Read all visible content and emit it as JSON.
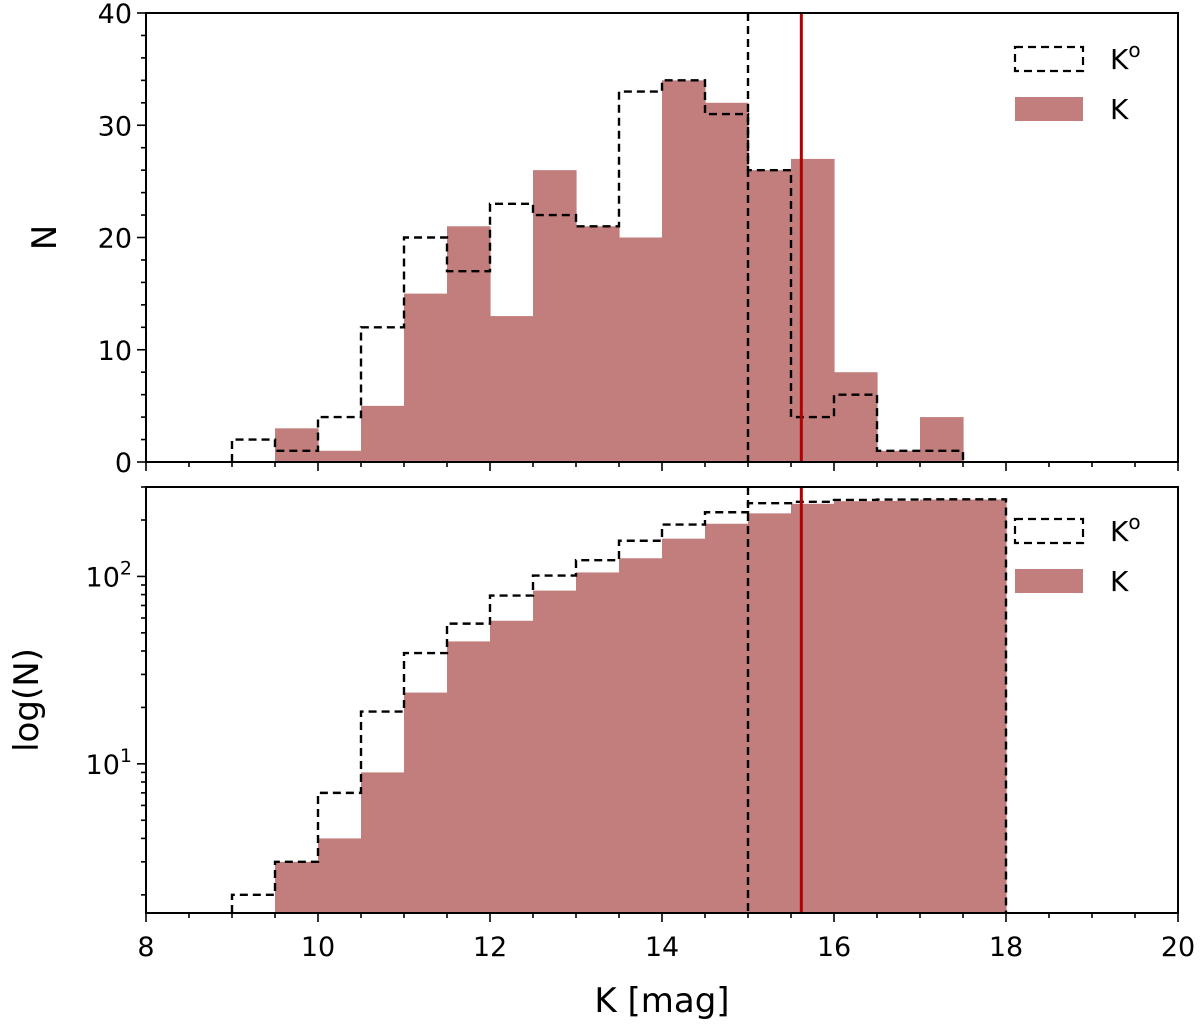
{
  "chart_data": [
    {
      "type": "histogram",
      "panel": "top",
      "xlabel": "",
      "ylabel": "N",
      "xlim": [
        8,
        20
      ],
      "ylim": [
        0,
        40
      ],
      "yscale": "linear",
      "xticks": [
        8,
        10,
        12,
        14,
        16,
        18,
        20
      ],
      "yticks": [
        0,
        10,
        20,
        30,
        40
      ],
      "ytick_labels": [
        "0",
        "10",
        "20",
        "30",
        "40"
      ],
      "bin_edges": [
        9.0,
        9.5,
        10.0,
        10.5,
        11.0,
        11.5,
        12.0,
        12.5,
        13.0,
        13.5,
        14.0,
        14.5,
        15.0,
        15.5,
        16.0,
        16.5,
        17.0,
        17.5
      ],
      "series": [
        {
          "name": "K",
          "legend": "K",
          "style": "filled",
          "color": "#c27e7c",
          "values": [
            0,
            3,
            1,
            5,
            15,
            21,
            13,
            26,
            21,
            20,
            34,
            32,
            26,
            27,
            8,
            1,
            4
          ]
        },
        {
          "name": "K^o",
          "legend": "K",
          "legend_sup": "o",
          "style": "dashed-step",
          "color": "#000000",
          "values": [
            2,
            1,
            4,
            12,
            20,
            17,
            23,
            22,
            21,
            33,
            34,
            31,
            26,
            4,
            6,
            1,
            1
          ]
        }
      ],
      "vlines": [
        {
          "x": 15.0,
          "style": "dashed",
          "color": "#000000"
        },
        {
          "x": 15.62,
          "style": "solid",
          "color": "#b30000"
        }
      ],
      "legend_position": "top-right"
    },
    {
      "type": "histogram",
      "panel": "bottom",
      "cumulative": true,
      "xlabel": "K [mag]",
      "ylabel": "log(N)",
      "xlim": [
        8,
        20
      ],
      "ylim": [
        1.6,
        300
      ],
      "yscale": "log",
      "xticks": [
        8,
        10,
        12,
        14,
        16,
        18,
        20
      ],
      "xtick_labels": [
        "8",
        "10",
        "12",
        "14",
        "16",
        "18",
        "20"
      ],
      "ytick_labels": [
        {
          "base": "10",
          "exp": "1",
          "value": 10
        },
        {
          "base": "10",
          "exp": "2",
          "value": 100
        }
      ],
      "bin_edges": [
        9.0,
        9.5,
        10.0,
        10.5,
        11.0,
        11.5,
        12.0,
        12.5,
        13.0,
        13.5,
        14.0,
        14.5,
        15.0,
        15.5,
        16.0,
        16.5,
        17.0,
        17.5,
        18.0
      ],
      "series": [
        {
          "name": "K",
          "legend": "K",
          "style": "filled",
          "color": "#c27e7c",
          "values": [
            0,
            3,
            4,
            9,
            24,
            45,
            58,
            84,
            105,
            125,
            159,
            191,
            217,
            244,
            252,
            253,
            257,
            257
          ]
        },
        {
          "name": "K^o",
          "legend": "K",
          "legend_sup": "o",
          "style": "dashed-step",
          "color": "#000000",
          "values": [
            2,
            3,
            7,
            19,
            39,
            56,
            79,
            101,
            122,
            155,
            189,
            220,
            246,
            250,
            256,
            257,
            258,
            258
          ]
        }
      ],
      "vlines": [
        {
          "x": 15.0,
          "style": "dashed",
          "color": "#000000"
        },
        {
          "x": 15.62,
          "style": "solid",
          "color": "#b30000"
        }
      ],
      "legend_position": "top-right"
    }
  ]
}
